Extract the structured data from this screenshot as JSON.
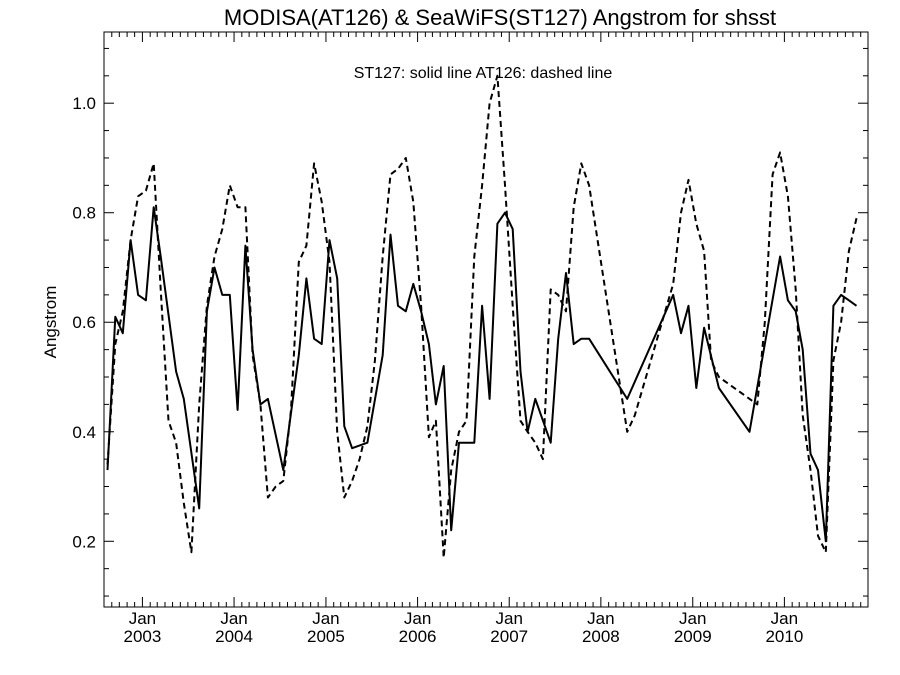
{
  "chart_data": {
    "type": "line",
    "title": "MODISA(AT126) & SeaWiFS(ST127)  Angstrom for shsst",
    "legend_text": "ST127: solid line   AT126: dashed line",
    "xlabel": "",
    "ylabel": "Angstrom",
    "xlim": [
      "2002-08-01",
      "2010-11-30"
    ],
    "ylim": [
      0.08,
      1.13
    ],
    "yticks": [
      "0.2",
      "0.4",
      "0.6",
      "0.8",
      "1.0"
    ],
    "yticks_values": [
      0.2,
      0.4,
      0.6,
      0.8,
      1.0
    ],
    "xticks": [
      {
        "month": "Jan",
        "year": "2003",
        "date": "2003-01-01"
      },
      {
        "month": "Jan",
        "year": "2004",
        "date": "2004-01-01"
      },
      {
        "month": "Jan",
        "year": "2005",
        "date": "2005-01-01"
      },
      {
        "month": "Jan",
        "year": "2006",
        "date": "2006-01-01"
      },
      {
        "month": "Jan",
        "year": "2007",
        "date": "2007-01-01"
      },
      {
        "month": "Jan",
        "year": "2008",
        "date": "2008-01-01"
      },
      {
        "month": "Jan",
        "year": "2009",
        "date": "2009-01-01"
      },
      {
        "month": "Jan",
        "year": "2010",
        "date": "2010-01-01"
      }
    ],
    "series": [
      {
        "style": "solid",
        "color": "#000000",
        "points": [
          [
            "2002-08",
            0.33
          ],
          [
            "2002-09",
            0.61
          ],
          [
            "2002-10",
            0.58
          ],
          [
            "2002-11",
            0.75
          ],
          [
            "2002-12",
            0.65
          ],
          [
            "2003-01",
            0.64
          ],
          [
            "2003-02",
            0.81
          ],
          [
            "2003-03",
            0.72
          ],
          [
            "2003-05",
            0.51
          ],
          [
            "2003-06",
            0.46
          ],
          [
            "2003-08",
            0.26
          ],
          [
            "2003-09",
            0.62
          ],
          [
            "2003-10",
            0.7
          ],
          [
            "2003-11",
            0.65
          ],
          [
            "2003-12",
            0.65
          ],
          [
            "2004-01",
            0.44
          ],
          [
            "2004-02",
            0.74
          ],
          [
            "2004-03",
            0.55
          ],
          [
            "2004-04",
            0.45
          ],
          [
            "2004-05",
            0.46
          ],
          [
            "2004-07",
            0.33
          ],
          [
            "2004-09",
            0.54
          ],
          [
            "2004-10",
            0.68
          ],
          [
            "2004-11",
            0.57
          ],
          [
            "2004-12",
            0.56
          ],
          [
            "2005-01",
            0.75
          ],
          [
            "2005-02",
            0.68
          ],
          [
            "2005-03",
            0.41
          ],
          [
            "2005-04",
            0.37
          ],
          [
            "2005-06",
            0.38
          ],
          [
            "2005-08",
            0.54
          ],
          [
            "2005-09",
            0.76
          ],
          [
            "2005-10",
            0.63
          ],
          [
            "2005-11",
            0.62
          ],
          [
            "2005-12",
            0.67
          ],
          [
            "2006-01",
            0.62
          ],
          [
            "2006-02",
            0.56
          ],
          [
            "2006-03",
            0.45
          ],
          [
            "2006-04",
            0.52
          ],
          [
            "2006-05",
            0.22
          ],
          [
            "2006-06",
            0.38
          ],
          [
            "2006-08",
            0.38
          ],
          [
            "2006-09",
            0.63
          ],
          [
            "2006-10",
            0.46
          ],
          [
            "2006-11",
            0.78
          ],
          [
            "2006-12",
            0.8
          ],
          [
            "2007-01",
            0.77
          ],
          [
            "2007-02",
            0.51
          ],
          [
            "2007-03",
            0.4
          ],
          [
            "2007-04",
            0.46
          ],
          [
            "2007-06",
            0.38
          ],
          [
            "2007-07",
            0.57
          ],
          [
            "2007-08",
            0.69
          ],
          [
            "2007-09",
            0.56
          ],
          [
            "2007-10",
            0.57
          ],
          [
            "2007-11",
            0.57
          ],
          [
            "2008-04",
            0.46
          ],
          [
            "2008-10",
            0.65
          ],
          [
            "2008-11",
            0.58
          ],
          [
            "2008-12",
            0.63
          ],
          [
            "2009-01",
            0.48
          ],
          [
            "2009-02",
            0.59
          ],
          [
            "2009-04",
            0.48
          ],
          [
            "2009-08",
            0.4
          ],
          [
            "2009-12",
            0.72
          ],
          [
            "2010-01",
            0.64
          ],
          [
            "2010-02",
            0.62
          ],
          [
            "2010-03",
            0.55
          ],
          [
            "2010-04",
            0.36
          ],
          [
            "2010-05",
            0.33
          ],
          [
            "2010-06",
            0.2
          ],
          [
            "2010-07",
            0.63
          ],
          [
            "2010-08",
            0.65
          ],
          [
            "2010-09",
            0.64
          ],
          [
            "2010-10",
            0.63
          ]
        ]
      },
      {
        "style": "dashed",
        "color": "#000000",
        "points": [
          [
            "2002-08",
            0.34
          ],
          [
            "2002-09",
            0.56
          ],
          [
            "2002-10",
            0.62
          ],
          [
            "2002-11",
            0.75
          ],
          [
            "2002-12",
            0.83
          ],
          [
            "2003-01",
            0.84
          ],
          [
            "2003-02",
            0.89
          ],
          [
            "2003-03",
            0.66
          ],
          [
            "2003-04",
            0.42
          ],
          [
            "2003-05",
            0.38
          ],
          [
            "2003-06",
            0.27
          ],
          [
            "2003-07",
            0.18
          ],
          [
            "2003-08",
            0.45
          ],
          [
            "2003-09",
            0.63
          ],
          [
            "2003-10",
            0.72
          ],
          [
            "2003-11",
            0.77
          ],
          [
            "2003-12",
            0.85
          ],
          [
            "2004-01",
            0.81
          ],
          [
            "2004-02",
            0.81
          ],
          [
            "2004-03",
            0.54
          ],
          [
            "2004-04",
            0.45
          ],
          [
            "2004-05",
            0.28
          ],
          [
            "2004-06",
            0.3
          ],
          [
            "2004-07",
            0.31
          ],
          [
            "2004-08",
            0.44
          ],
          [
            "2004-09",
            0.71
          ],
          [
            "2004-10",
            0.74
          ],
          [
            "2004-11",
            0.89
          ],
          [
            "2004-12",
            0.82
          ],
          [
            "2005-01",
            0.71
          ],
          [
            "2005-02",
            0.4
          ],
          [
            "2005-03",
            0.28
          ],
          [
            "2005-04",
            0.31
          ],
          [
            "2005-05",
            0.35
          ],
          [
            "2005-06",
            0.41
          ],
          [
            "2005-07",
            0.53
          ],
          [
            "2005-08",
            0.72
          ],
          [
            "2005-09",
            0.87
          ],
          [
            "2005-10",
            0.88
          ],
          [
            "2005-11",
            0.9
          ],
          [
            "2005-12",
            0.82
          ],
          [
            "2006-01",
            0.63
          ],
          [
            "2006-02",
            0.39
          ],
          [
            "2006-03",
            0.42
          ],
          [
            "2006-04",
            0.17
          ],
          [
            "2006-05",
            0.33
          ],
          [
            "2006-06",
            0.4
          ],
          [
            "2006-07",
            0.42
          ],
          [
            "2006-08",
            0.72
          ],
          [
            "2006-09",
            0.85
          ],
          [
            "2006-10",
            1.0
          ],
          [
            "2006-11",
            1.05
          ],
          [
            "2006-12",
            0.85
          ],
          [
            "2007-01",
            0.63
          ],
          [
            "2007-02",
            0.42
          ],
          [
            "2007-03",
            0.4
          ],
          [
            "2007-04",
            0.38
          ],
          [
            "2007-05",
            0.35
          ],
          [
            "2007-06",
            0.66
          ],
          [
            "2007-07",
            0.65
          ],
          [
            "2007-08",
            0.62
          ],
          [
            "2007-09",
            0.81
          ],
          [
            "2007-10",
            0.89
          ],
          [
            "2007-11",
            0.85
          ],
          [
            "2008-04",
            0.4
          ],
          [
            "2008-05",
            0.43
          ],
          [
            "2008-10",
            0.67
          ],
          [
            "2008-11",
            0.8
          ],
          [
            "2008-12",
            0.86
          ],
          [
            "2009-01",
            0.78
          ],
          [
            "2009-02",
            0.73
          ],
          [
            "2009-03",
            0.53
          ],
          [
            "2009-04",
            0.5
          ],
          [
            "2009-09",
            0.45
          ],
          [
            "2009-10",
            0.6
          ],
          [
            "2009-11",
            0.87
          ],
          [
            "2009-12",
            0.91
          ],
          [
            "2010-01",
            0.83
          ],
          [
            "2010-02",
            0.66
          ],
          [
            "2010-03",
            0.43
          ],
          [
            "2010-04",
            0.33
          ],
          [
            "2010-05",
            0.21
          ],
          [
            "2010-06",
            0.18
          ],
          [
            "2010-07",
            0.53
          ],
          [
            "2010-08",
            0.6
          ],
          [
            "2010-09",
            0.73
          ],
          [
            "2010-10",
            0.79
          ]
        ]
      }
    ]
  }
}
